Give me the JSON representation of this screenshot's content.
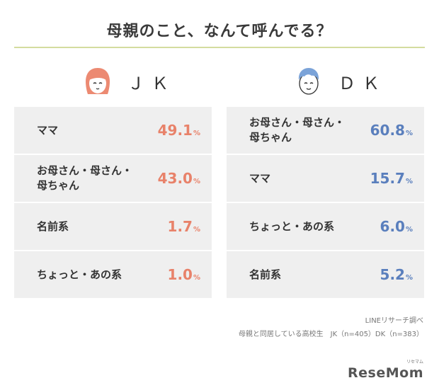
{
  "title": "母親のこと、なんて呼んでる？",
  "chart_data": [
    {
      "type": "table",
      "group": "ＪＫ",
      "categories": [
        "ママ",
        "お母さん・母さん・\n母ちゃん",
        "名前系",
        "ちょっと・あの系"
      ],
      "values": [
        49.1,
        43.0,
        1.7,
        1.0
      ],
      "unit": "%"
    },
    {
      "type": "table",
      "group": "ＤＫ",
      "categories": [
        "お母さん・母さん・\n母ちゃん",
        "ママ",
        "ちょっと・あの系",
        "名前系"
      ],
      "values": [
        60.8,
        15.7,
        6.0,
        5.2
      ],
      "unit": "%"
    }
  ],
  "colors": {
    "jk": "#e8826a",
    "dk": "#5a7fbd",
    "row_bg": "#efefef",
    "rule": "#d4dc9f"
  },
  "icons": {
    "jk": "girl-face-icon",
    "dk": "boy-face-icon"
  },
  "source_lines": [
    "LINEリサーチ調べ",
    "母親と同居している高校生　JK（n=405）DK（n=383）"
  ],
  "logo": {
    "small": "リセマム",
    "text": "ReseMom"
  }
}
